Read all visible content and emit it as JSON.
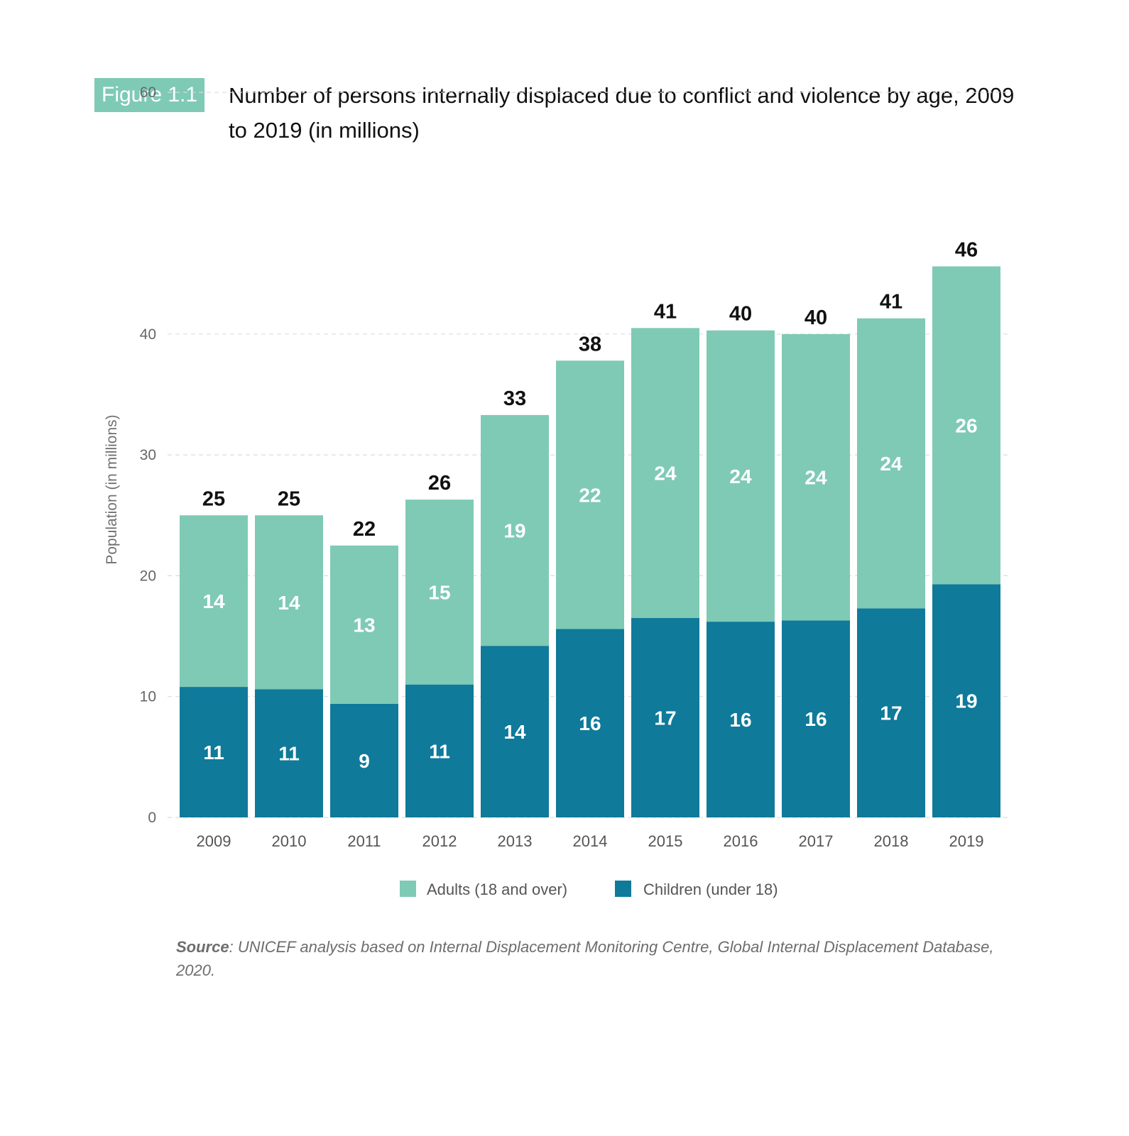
{
  "figure": {
    "tag": "Figure 1.1",
    "title": "Number of persons internally displaced due to conflict and violence by age, 2009 to 2019 (in millions)"
  },
  "chart_data": {
    "type": "bar",
    "stacked": true,
    "categories": [
      "2009",
      "2010",
      "2011",
      "2012",
      "2013",
      "2014",
      "2015",
      "2016",
      "2017",
      "2018",
      "2019"
    ],
    "series": [
      {
        "name": "Children (under 18)",
        "color": "#0f7a9a",
        "values": [
          11,
          11,
          9,
          11,
          14,
          16,
          17,
          16,
          16,
          17,
          19
        ],
        "plotted": [
          10.8,
          10.6,
          9.4,
          11.0,
          14.2,
          15.6,
          16.5,
          16.2,
          16.3,
          17.3,
          19.3
        ]
      },
      {
        "name": "Adults (18 and over)",
        "color": "#7fcab5",
        "values": [
          14,
          14,
          13,
          15,
          19,
          22,
          24,
          24,
          24,
          24,
          26
        ],
        "plotted": [
          14.2,
          14.4,
          13.1,
          15.3,
          19.1,
          22.2,
          24.0,
          24.1,
          23.7,
          24.0,
          26.3
        ]
      }
    ],
    "totals": [
      25,
      25,
      22,
      26,
      33,
      38,
      41,
      40,
      40,
      41,
      46
    ],
    "ylabel": "Population (in millions)",
    "ylim": [
      0,
      60
    ],
    "yticks": [
      0,
      10,
      20,
      30,
      40,
      60
    ],
    "grid": true,
    "legend_position": "bottom"
  },
  "source": {
    "label": "Source",
    "text": ": UNICEF analysis based on Internal Displacement Monitoring Centre, Global Internal Displacement Database, 2020."
  }
}
